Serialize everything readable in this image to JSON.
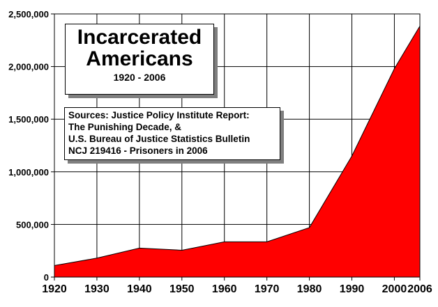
{
  "chart_data": {
    "type": "area",
    "title": "Incarcerated Americans",
    "subtitle": "1920 - 2006",
    "sources": [
      "Sources: Justice Policy Institute Report:",
      "The Punishing Decade, &",
      "U.S. Bureau of Justice Statistics Bulletin",
      "NCJ 219416 - Prisoners in 2006"
    ],
    "x": [
      1920,
      1930,
      1940,
      1950,
      1960,
      1970,
      1980,
      1990,
      2000,
      2006
    ],
    "values": [
      110000,
      180000,
      275000,
      255000,
      335000,
      335000,
      470000,
      1150000,
      1980000,
      2385000
    ],
    "x_ticks": [
      "1920",
      "1930",
      "1940",
      "1950",
      "1960",
      "1970",
      "1980",
      "1990",
      "2000",
      "2006"
    ],
    "y_ticks": [
      "0",
      "500,000",
      "1,000,000",
      "1,500,000",
      "2,000,000",
      "2,500,000"
    ],
    "ylim": [
      0,
      2500000
    ],
    "grid": true,
    "fill_color": "#ff0000"
  }
}
